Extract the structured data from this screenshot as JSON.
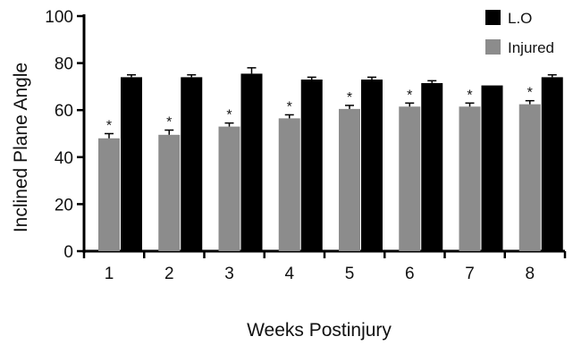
{
  "chart_data": {
    "type": "bar",
    "title": "",
    "xlabel": "Weeks Postinjury",
    "ylabel": "Inclined Plane Angle",
    "ylim": [
      0,
      100
    ],
    "yticks": [
      "0",
      "20",
      "40",
      "60",
      "80",
      "100"
    ],
    "categories": [
      "1",
      "2",
      "3",
      "4",
      "5",
      "6",
      "7",
      "8"
    ],
    "series": [
      {
        "name": "Injured",
        "color": "#8c8c8c",
        "values": [
          48,
          49.5,
          53,
          56.5,
          60.5,
          61.5,
          61.5,
          62.5
        ],
        "errors": [
          2,
          2,
          1.5,
          1.5,
          1.5,
          1.5,
          1.5,
          1.5
        ],
        "significance": [
          "*",
          "*",
          "*",
          "*",
          "*",
          "*",
          "*",
          "*"
        ]
      },
      {
        "name": "L.O",
        "color": "#000000",
        "values": [
          74,
          74,
          75.5,
          73,
          73,
          71.5,
          70.5,
          74
        ],
        "errors": [
          1,
          1,
          2.5,
          1,
          1,
          1,
          0,
          1
        ]
      }
    ],
    "legend_position": "top-right",
    "grid": false
  }
}
